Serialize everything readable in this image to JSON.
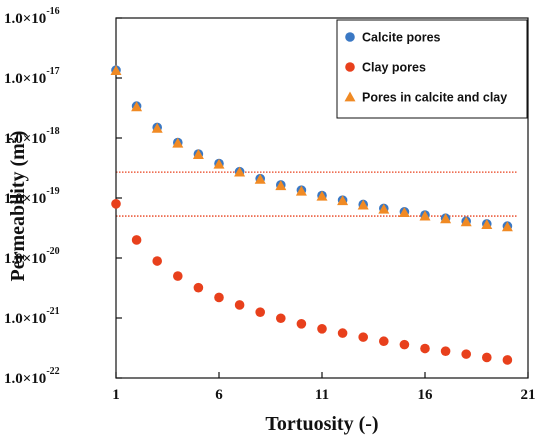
{
  "chart_data": {
    "type": "scatter",
    "xlabel": "Tortuosity  (-)",
    "ylabel_main": "Permeability  (m",
    "ylabel_sup": "2",
    "ylabel_close": ")",
    "xlim": [
      1,
      21
    ],
    "ylim": [
      1e-22,
      1e-16
    ],
    "yscale": "log",
    "xticks": [
      {
        "value": 1,
        "label": "1"
      },
      {
        "value": 6,
        "label": "6"
      },
      {
        "value": 11,
        "label": "11"
      },
      {
        "value": 16,
        "label": "16"
      },
      {
        "value": 21,
        "label": "21"
      }
    ],
    "yticks": [
      {
        "value": 1e-16,
        "mant": "1.0×10",
        "exp": "-16"
      },
      {
        "value": 1e-17,
        "mant": "1.0×10",
        "exp": "-17"
      },
      {
        "value": 1e-18,
        "mant": "1.0×10",
        "exp": "-18"
      },
      {
        "value": 1e-19,
        "mant": "1.0×10",
        "exp": "-19"
      },
      {
        "value": 1e-20,
        "mant": "1.0×10",
        "exp": "-20"
      },
      {
        "value": 1e-21,
        "mant": "1.0×10",
        "exp": "-21"
      },
      {
        "value": 1e-22,
        "mant": "1.0×10",
        "exp": "-22"
      }
    ],
    "hlines": [
      {
        "y": 2.7e-19,
        "color": "#e8401c"
      },
      {
        "y": 5e-20,
        "color": "#e8401c"
      }
    ],
    "legend_position": "top-right",
    "series": [
      {
        "name": "Calcite pores",
        "marker": "circle",
        "color": "#3a78c4",
        "x": [
          1,
          2,
          3,
          4,
          5,
          6,
          7,
          8,
          9,
          10,
          11,
          12,
          13,
          14,
          15,
          16,
          17,
          18,
          19,
          20
        ],
        "y": [
          1.35e-17,
          3.4e-18,
          1.5e-18,
          8.4e-19,
          5.4e-19,
          3.75e-19,
          2.75e-19,
          2.1e-19,
          1.65e-19,
          1.35e-19,
          1.1e-19,
          9.2e-20,
          7.8e-20,
          6.7e-20,
          5.9e-20,
          5.2e-20,
          4.6e-20,
          4.1e-20,
          3.7e-20,
          3.4e-20
        ]
      },
      {
        "name": "Clay pores",
        "marker": "circle",
        "color": "#e8401c",
        "x": [
          1,
          2,
          3,
          4,
          5,
          6,
          7,
          8,
          9,
          10,
          11,
          12,
          13,
          14,
          15,
          16,
          17,
          18,
          19,
          20
        ],
        "y": [
          8e-20,
          2e-20,
          8.9e-21,
          5e-21,
          3.2e-21,
          2.2e-21,
          1.65e-21,
          1.25e-21,
          9.9e-22,
          8e-22,
          6.6e-22,
          5.6e-22,
          4.8e-22,
          4.1e-22,
          3.6e-22,
          3.1e-22,
          2.8e-22,
          2.5e-22,
          2.2e-22,
          2e-22
        ]
      },
      {
        "name": "Pores in calcite and clay",
        "marker": "triangle",
        "color": "#f08a24",
        "x": [
          1,
          2,
          3,
          4,
          5,
          6,
          7,
          8,
          9,
          10,
          11,
          12,
          13,
          14,
          15,
          16,
          17,
          18,
          19,
          20
        ],
        "y": [
          1.33e-17,
          3.3e-18,
          1.45e-18,
          8.2e-19,
          5.3e-19,
          3.65e-19,
          2.7e-19,
          2.05e-19,
          1.6e-19,
          1.3e-19,
          1.07e-19,
          9e-20,
          7.6e-20,
          6.5e-20,
          5.7e-20,
          5e-20,
          4.5e-20,
          4e-20,
          3.6e-20,
          3.3e-20
        ]
      }
    ]
  }
}
